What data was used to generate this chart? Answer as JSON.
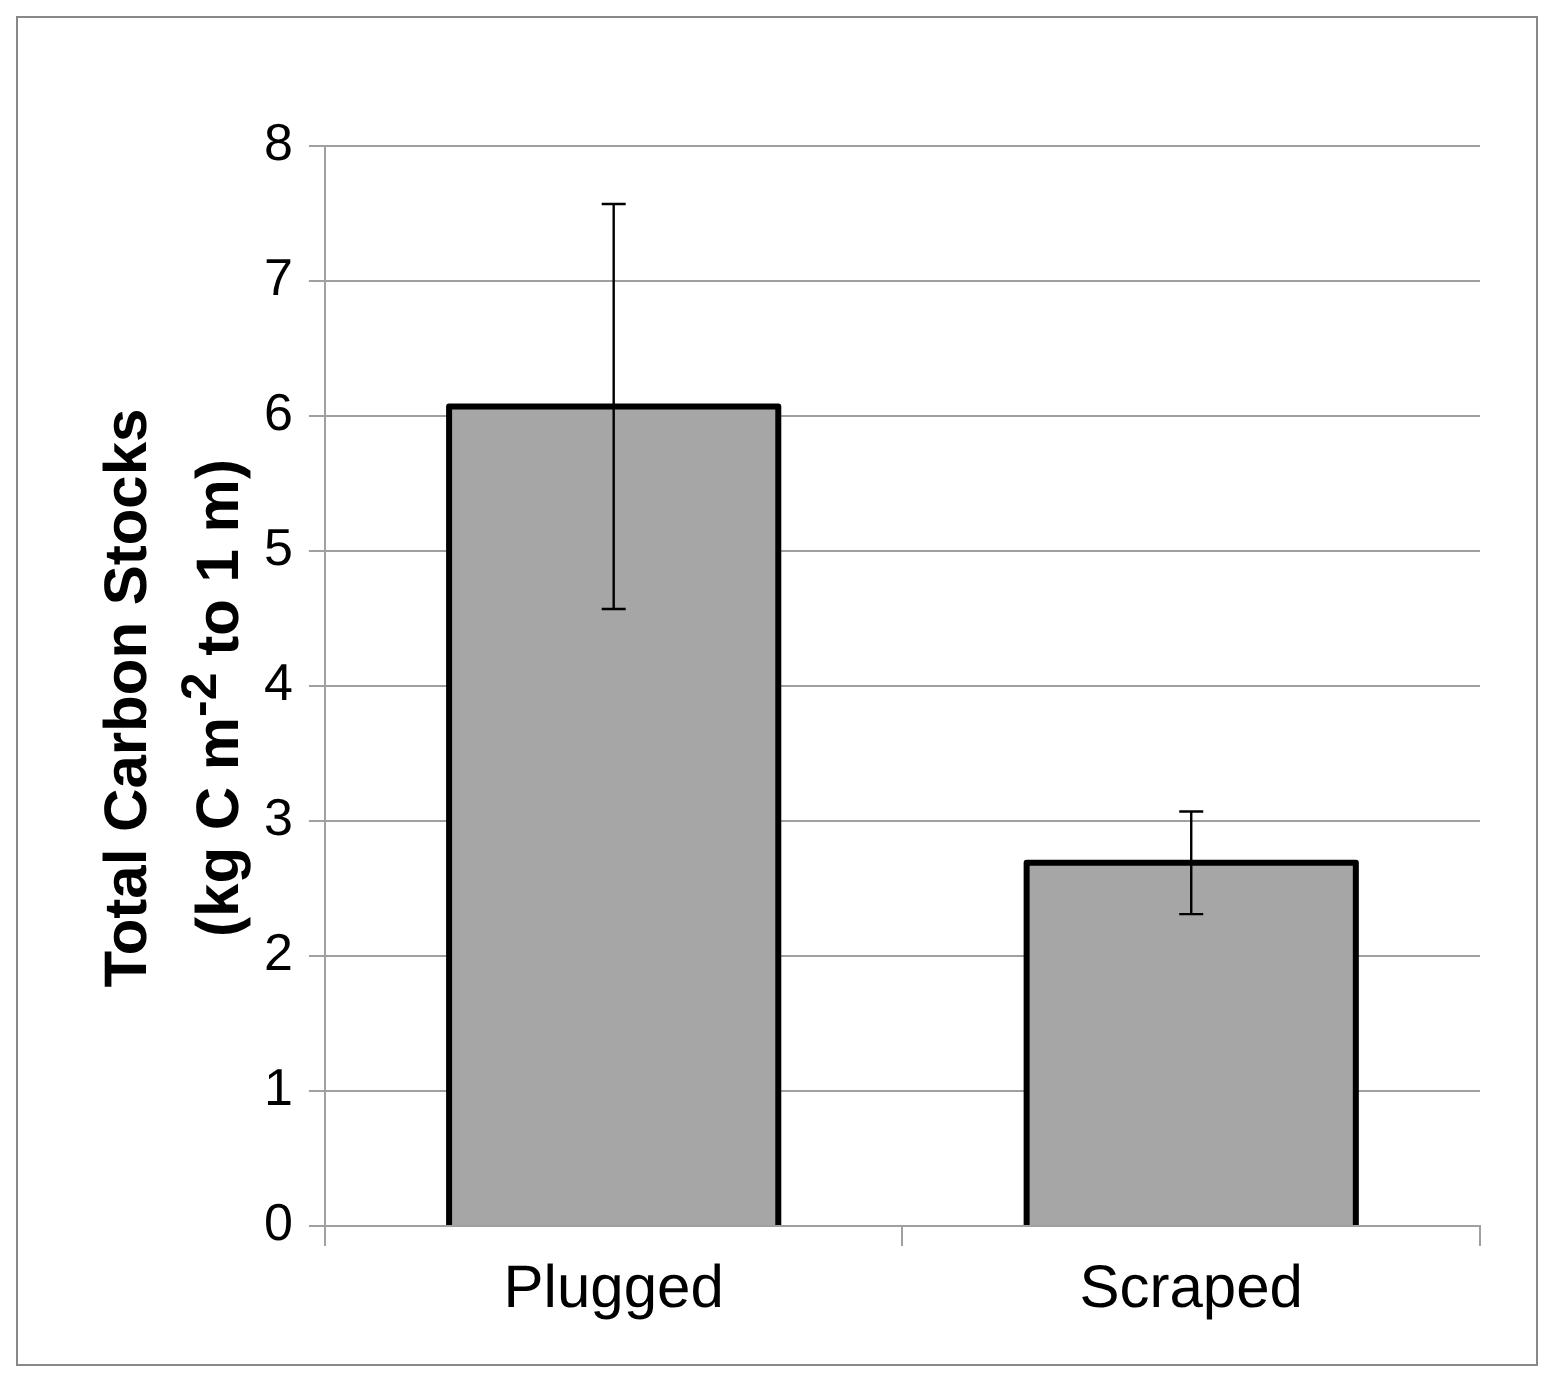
{
  "chart_data": {
    "type": "bar",
    "ylabel": "Total Carbon Stocks\n(kg C m$^{-2}$ to 1 m)",
    "categories": [
      "Plugged",
      "Scraped"
    ],
    "values": [
      6.07,
      2.69
    ],
    "errors": [
      1.5,
      0.38
    ],
    "color": "#a6a6a6",
    "ylim": [
      0,
      8
    ],
    "yticks": [
      0,
      1,
      2,
      3,
      4,
      5,
      6,
      7,
      8
    ],
    "grid": "y",
    "legend": false
  }
}
